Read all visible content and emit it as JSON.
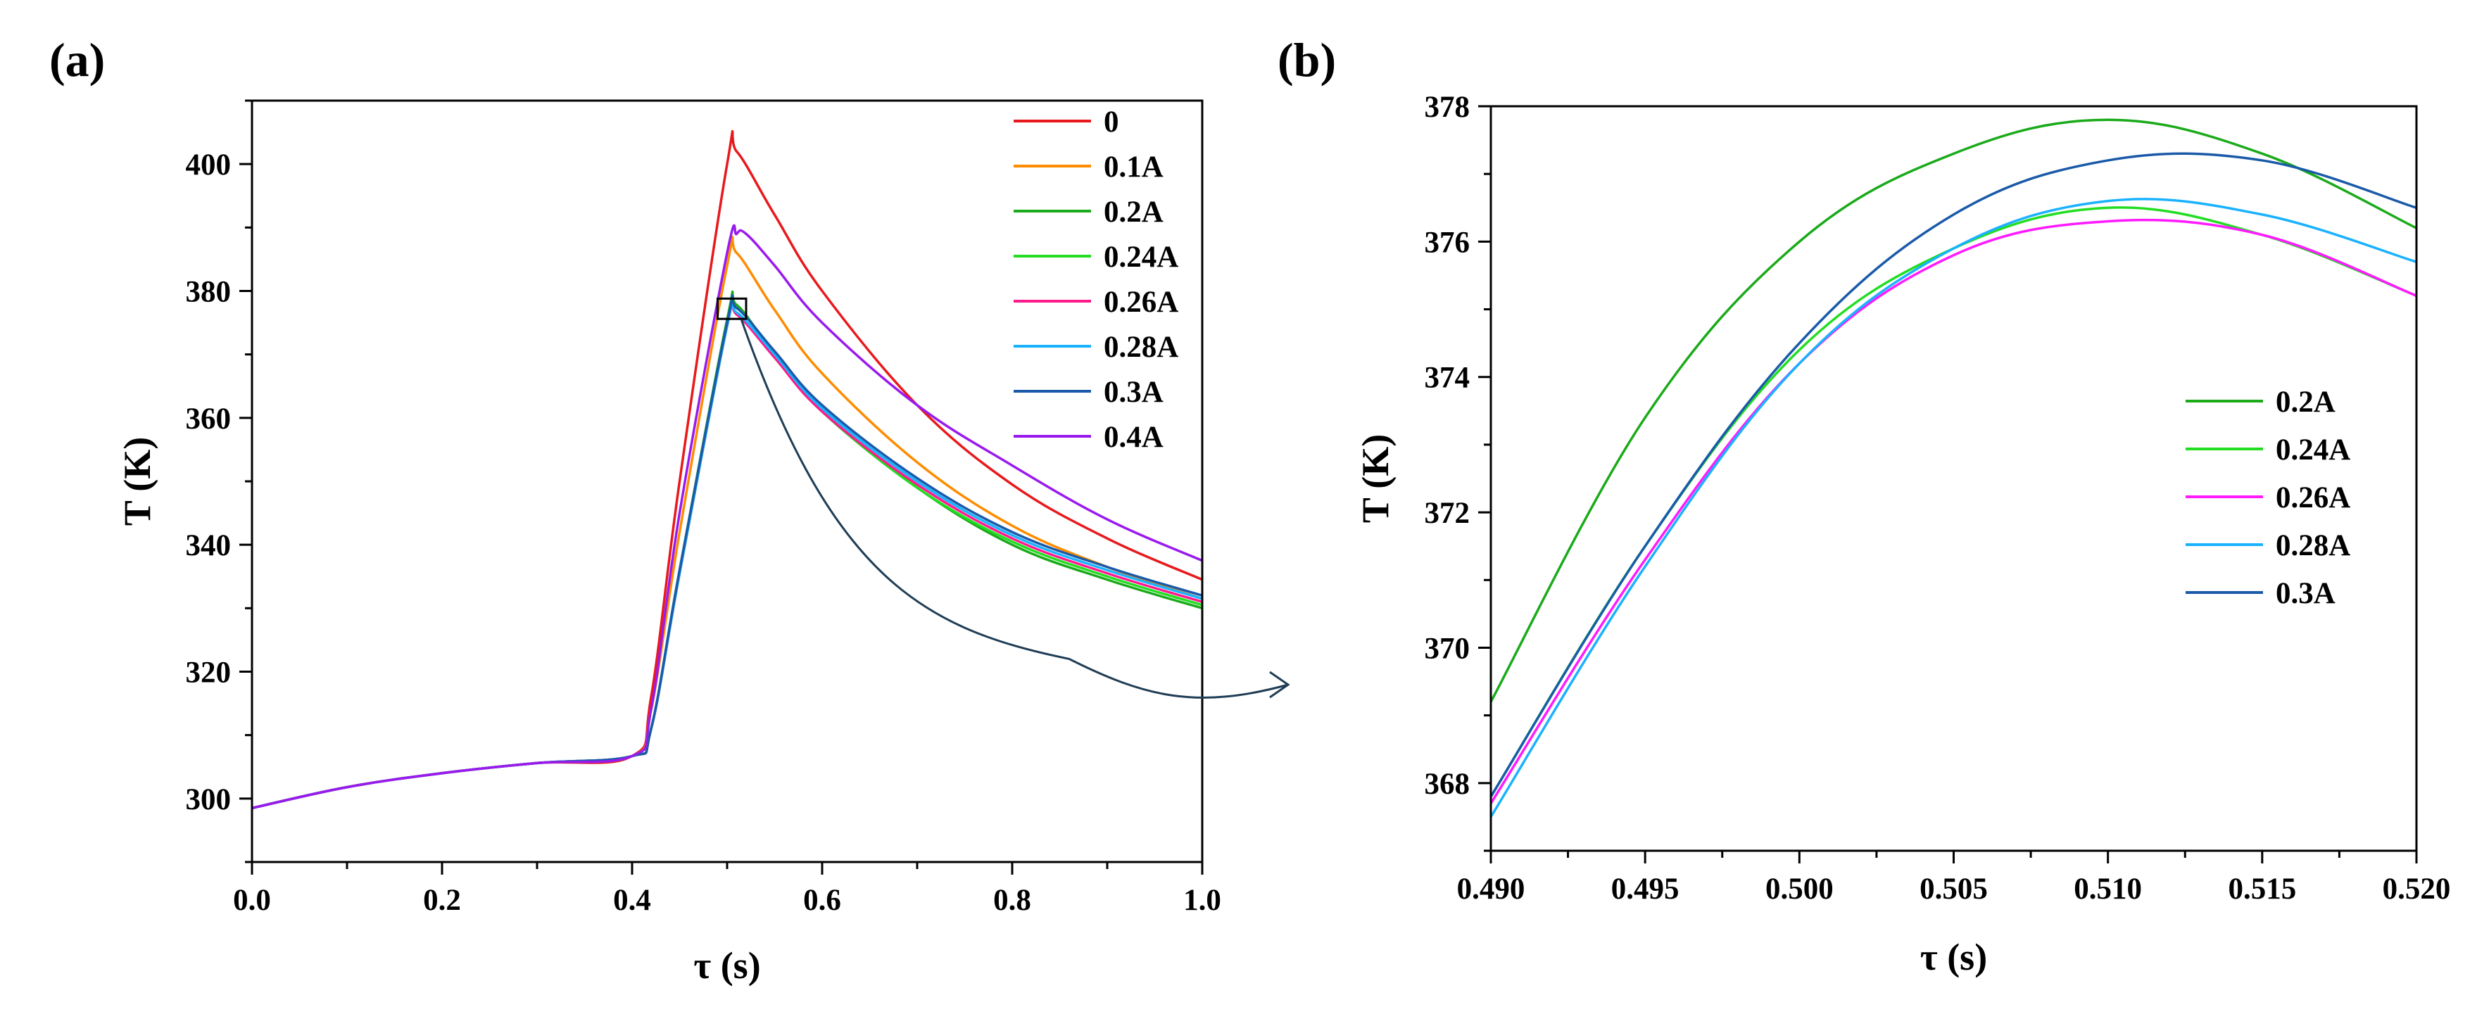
{
  "chart_data": [
    {
      "panel": "(a)",
      "type": "line",
      "title": "",
      "xlabel": "τ (s)",
      "ylabel": "T (K)",
      "xlim": [
        0,
        1.0
      ],
      "ylim": [
        290,
        410
      ],
      "xticks": [
        0.0,
        0.2,
        0.4,
        0.6,
        0.8,
        1.0
      ],
      "xtick_labels": [
        "0.0",
        "0.2",
        "0.4",
        "0.6",
        "0.8",
        "1.0"
      ],
      "yticks": [
        300,
        320,
        340,
        360,
        380,
        400
      ],
      "ytick_labels": [
        "300",
        "320",
        "340",
        "360",
        "380",
        "400"
      ],
      "legend_position": "top-right",
      "annotations": [
        "zoom box near τ = 0.51 s, T = 377 K linked by arrow to panel (b)"
      ],
      "series": [
        {
          "name": "0",
          "color": "#e8191c",
          "x": [
            0,
            0.1,
            0.2,
            0.3,
            0.4,
            0.42,
            0.45,
            0.5,
            0.51,
            0.55,
            0.6,
            0.7,
            0.8,
            0.9,
            1.0
          ],
          "y": [
            298.5,
            301.8,
            304.0,
            305.6,
            306.7,
            316,
            350,
            400,
            402,
            392,
            380,
            362,
            349.5,
            341,
            334.5
          ]
        },
        {
          "name": "0.1A",
          "color": "#ff8c00",
          "x": [
            0,
            0.1,
            0.2,
            0.3,
            0.4,
            0.42,
            0.45,
            0.5,
            0.51,
            0.55,
            0.6,
            0.7,
            0.8,
            0.9,
            1.0
          ],
          "y": [
            298.5,
            301.8,
            304.0,
            305.6,
            306.7,
            314,
            342,
            384,
            386,
            377,
            367,
            353,
            343,
            336.5,
            331.5
          ]
        },
        {
          "name": "0.2A",
          "color": "#1aaa1a",
          "x": [
            0,
            0.1,
            0.2,
            0.3,
            0.4,
            0.42,
            0.45,
            0.5,
            0.51,
            0.55,
            0.6,
            0.7,
            0.8,
            0.9,
            1.0
          ],
          "y": [
            298.5,
            301.8,
            304.0,
            305.6,
            306.7,
            311,
            336,
            375.5,
            377.8,
            370,
            361,
            349,
            340,
            334.5,
            330
          ]
        },
        {
          "name": "0.24A",
          "color": "#22dd22",
          "x": [
            0,
            0.1,
            0.2,
            0.3,
            0.4,
            0.42,
            0.45,
            0.5,
            0.51,
            0.55,
            0.6,
            0.7,
            0.8,
            0.9,
            1.0
          ],
          "y": [
            298.5,
            301.8,
            304.0,
            305.6,
            306.7,
            311,
            335.5,
            374.5,
            376.5,
            369.5,
            361,
            349,
            340.5,
            335,
            330.5
          ]
        },
        {
          "name": "0.26A",
          "color": "#ff1a8c",
          "x": [
            0,
            0.1,
            0.2,
            0.3,
            0.4,
            0.42,
            0.45,
            0.5,
            0.51,
            0.55,
            0.6,
            0.7,
            0.8,
            0.9,
            1.0
          ],
          "y": [
            298.5,
            301.8,
            304.0,
            305.6,
            306.7,
            311,
            335.5,
            374.5,
            376.3,
            369.5,
            361,
            349.5,
            341,
            335.5,
            331
          ]
        },
        {
          "name": "0.28A",
          "color": "#1ab2ff",
          "x": [
            0,
            0.1,
            0.2,
            0.3,
            0.4,
            0.42,
            0.45,
            0.5,
            0.51,
            0.55,
            0.6,
            0.7,
            0.8,
            0.9,
            1.0
          ],
          "y": [
            298.5,
            301.8,
            304.0,
            305.6,
            306.7,
            311,
            335.5,
            374.5,
            376.6,
            370,
            361.5,
            350,
            341.5,
            336,
            331.5
          ]
        },
        {
          "name": "0.3A",
          "color": "#1a5aa8",
          "x": [
            0,
            0.1,
            0.2,
            0.3,
            0.4,
            0.42,
            0.45,
            0.5,
            0.51,
            0.55,
            0.6,
            0.7,
            0.8,
            0.9,
            1.0
          ],
          "y": [
            298.5,
            301.8,
            304.0,
            305.6,
            306.7,
            311,
            336,
            375,
            377.3,
            370.5,
            362,
            350.5,
            342,
            336.5,
            332
          ]
        },
        {
          "name": "0.4A",
          "color": "#9a1aee",
          "x": [
            0,
            0.1,
            0.2,
            0.3,
            0.4,
            0.42,
            0.45,
            0.5,
            0.51,
            0.52,
            0.55,
            0.6,
            0.7,
            0.8,
            0.9,
            1.0
          ],
          "y": [
            298.5,
            301.8,
            304.0,
            305.6,
            306.7,
            314,
            345,
            386,
            389,
            389,
            384,
            375,
            362,
            352.5,
            344,
            337.5
          ]
        }
      ]
    },
    {
      "panel": "(b)",
      "type": "line",
      "title": "",
      "xlabel": "τ (s)",
      "ylabel": "T (K)",
      "xlim": [
        0.49,
        0.52
      ],
      "ylim": [
        367,
        378
      ],
      "xticks": [
        0.49,
        0.495,
        0.5,
        0.505,
        0.51,
        0.515,
        0.52
      ],
      "xtick_labels": [
        "0.490",
        "0.495",
        "0.500",
        "0.505",
        "0.510",
        "0.515",
        "0.520"
      ],
      "yticks": [
        368,
        370,
        372,
        374,
        376,
        378
      ],
      "ytick_labels": [
        "368",
        "370",
        "372",
        "374",
        "376",
        "378"
      ],
      "legend_position": "center-right",
      "series": [
        {
          "name": "0.2A",
          "color": "#1aaa1a",
          "x": [
            0.49,
            0.495,
            0.5,
            0.505,
            0.51,
            0.515,
            0.52
          ],
          "y": [
            369.2,
            373.4,
            376.0,
            377.3,
            377.8,
            377.3,
            376.2
          ]
        },
        {
          "name": "0.24A",
          "color": "#22dd22",
          "x": [
            0.49,
            0.495,
            0.5,
            0.505,
            0.51,
            0.515,
            0.52
          ],
          "y": [
            367.8,
            371.5,
            374.4,
            375.9,
            376.5,
            376.1,
            375.2
          ]
        },
        {
          "name": "0.26A",
          "color": "#ff1aff",
          "x": [
            0.49,
            0.495,
            0.5,
            0.505,
            0.51,
            0.515,
            0.52
          ],
          "y": [
            367.7,
            371.3,
            374.2,
            375.8,
            376.3,
            376.1,
            375.2
          ]
        },
        {
          "name": "0.28A",
          "color": "#1ab2ff",
          "x": [
            0.49,
            0.495,
            0.5,
            0.505,
            0.51,
            0.515,
            0.52
          ],
          "y": [
            367.5,
            371.2,
            374.2,
            375.9,
            376.6,
            376.4,
            375.7
          ]
        },
        {
          "name": "0.3A",
          "color": "#1a5aa8",
          "x": [
            0.49,
            0.495,
            0.5,
            0.505,
            0.51,
            0.515,
            0.52
          ],
          "y": [
            367.8,
            371.5,
            374.5,
            376.4,
            377.2,
            377.2,
            376.5
          ]
        }
      ]
    }
  ]
}
